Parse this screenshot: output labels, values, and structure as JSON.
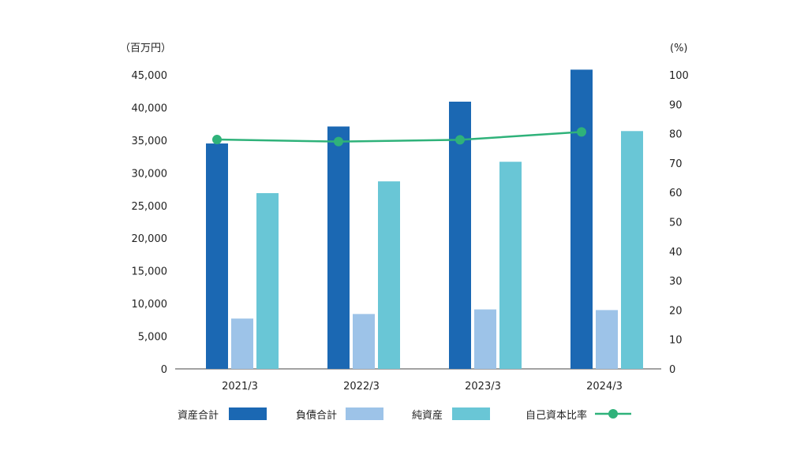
{
  "chart_data": {
    "type": "bar",
    "categories": [
      "2021/3",
      "2022/3",
      "2023/3",
      "2024/3"
    ],
    "series": [
      {
        "name": "資産合計",
        "type": "bar",
        "axis": "left",
        "color": "#1b68b3",
        "values": [
          34500,
          37100,
          40900,
          45800
        ]
      },
      {
        "name": "負債合計",
        "type": "bar",
        "axis": "left",
        "color": "#9dc3e8",
        "values": [
          7700,
          8400,
          9100,
          9000
        ]
      },
      {
        "name": "純資産",
        "type": "bar",
        "axis": "left",
        "color": "#69c6d6",
        "values": [
          26900,
          28700,
          31700,
          36400
        ]
      },
      {
        "name": "自己資本比率",
        "type": "line",
        "axis": "right",
        "color": "#2fb27a",
        "values": [
          78.0,
          77.3,
          77.9,
          80.6
        ]
      }
    ],
    "y_left": {
      "unit": "（百万円）",
      "ylim": [
        0,
        45000
      ],
      "ticks": [
        0,
        5000,
        10000,
        15000,
        20000,
        25000,
        30000,
        35000,
        40000,
        45000
      ],
      "tick_labels": [
        "0",
        "5,000",
        "10,000",
        "15,000",
        "20,000",
        "25,000",
        "30,000",
        "35,000",
        "40,000",
        "45,000"
      ]
    },
    "y_right": {
      "unit": "(%)",
      "ylim": [
        0,
        100
      ],
      "ticks": [
        0,
        10,
        20,
        30,
        40,
        50,
        60,
        70,
        80,
        90,
        100
      ],
      "tick_labels": [
        "0",
        "10",
        "20",
        "30",
        "40",
        "50",
        "60",
        "70",
        "80",
        "90",
        "100"
      ]
    },
    "grid": false,
    "legend_position": "bottom"
  }
}
